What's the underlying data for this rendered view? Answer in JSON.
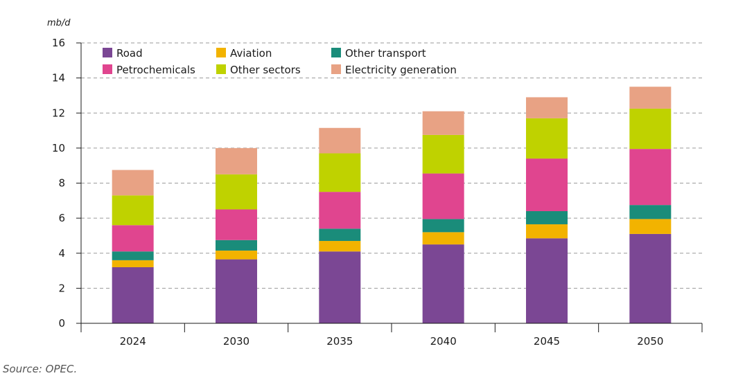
{
  "chart_data": {
    "type": "bar",
    "stacked": true,
    "unit_label": "mb/d",
    "source": "Source: OPEC.",
    "categories": [
      "2024",
      "2030",
      "2035",
      "2040",
      "2045",
      "2050"
    ],
    "ylim": [
      0,
      16
    ],
    "yticks": [
      0,
      2,
      4,
      6,
      8,
      10,
      12,
      14,
      16
    ],
    "grid": "horizontal dashed",
    "legend_position": "top-left",
    "series": [
      {
        "name": "Road",
        "color": "#7b4794",
        "values": [
          3.2,
          3.65,
          4.1,
          4.5,
          4.85,
          5.1
        ]
      },
      {
        "name": "Aviation",
        "color": "#f2b300",
        "values": [
          0.4,
          0.5,
          0.6,
          0.7,
          0.8,
          0.85
        ]
      },
      {
        "name": "Other transport",
        "color": "#1a8c7a",
        "values": [
          0.5,
          0.6,
          0.7,
          0.75,
          0.75,
          0.8
        ]
      },
      {
        "name": "Petrochemicals",
        "color": "#e0458f",
        "values": [
          1.5,
          1.75,
          2.1,
          2.6,
          3.0,
          3.2
        ]
      },
      {
        "name": "Other sectors",
        "color": "#bfd200",
        "values": [
          1.7,
          2.0,
          2.2,
          2.2,
          2.3,
          2.3
        ]
      },
      {
        "name": "Electricity generation",
        "color": "#e8a284",
        "values": [
          1.45,
          1.5,
          1.45,
          1.35,
          1.2,
          1.25
        ]
      }
    ]
  }
}
